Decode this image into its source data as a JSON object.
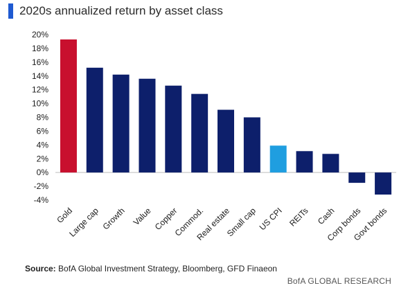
{
  "title": "2020s annualized return by asset class",
  "source_label": "Source:",
  "source_text": "BofA Global Investment Strategy, Bloomberg, GFD Finaeon",
  "brand_strong": "BofA",
  "brand_light": "GLOBAL RESEARCH",
  "colors": {
    "accent_bar": "#1f5ad1",
    "default_bar": "#0d1f6b",
    "gold_bar": "#c8102e",
    "cpi_bar": "#1f9ee0"
  },
  "chart_data": {
    "type": "bar",
    "title": "2020s annualized return by asset class",
    "xlabel": "",
    "ylabel": "",
    "ylim": [
      -4,
      20
    ],
    "yticks": [
      "20%",
      "18%",
      "16%",
      "14%",
      "12%",
      "10%",
      "8%",
      "6%",
      "4%",
      "2%",
      "0%",
      "-2%",
      "-4%"
    ],
    "categories": [
      "Gold",
      "Large cap",
      "Growth",
      "Value",
      "Copper",
      "Commod.",
      "Real estate",
      "Small cap",
      "US CPI",
      "REITs",
      "Cash",
      "Corp bonds",
      "Govt bonds"
    ],
    "values": [
      19.3,
      15.2,
      14.2,
      13.6,
      12.6,
      11.4,
      9.1,
      8.0,
      3.9,
      3.1,
      2.7,
      -1.5,
      -3.2
    ],
    "bar_colors": [
      "#c8102e",
      "#0d1f6b",
      "#0d1f6b",
      "#0d1f6b",
      "#0d1f6b",
      "#0d1f6b",
      "#0d1f6b",
      "#0d1f6b",
      "#1f9ee0",
      "#0d1f6b",
      "#0d1f6b",
      "#0d1f6b",
      "#0d1f6b"
    ],
    "grid": false
  }
}
